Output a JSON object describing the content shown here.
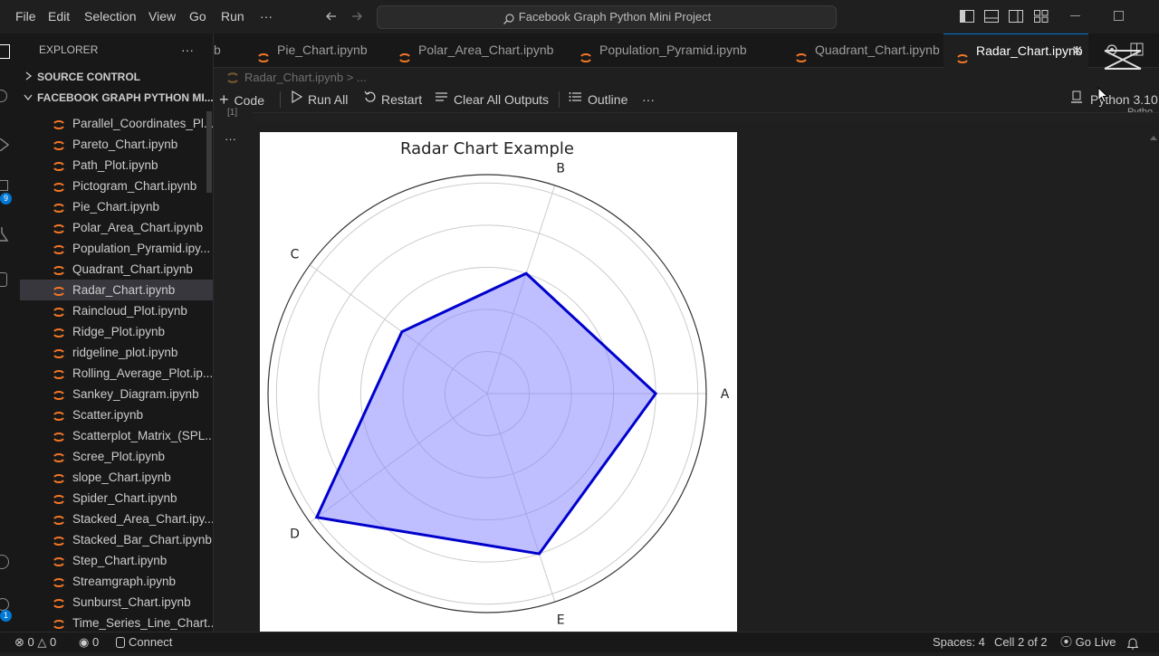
{
  "menu": [
    "File",
    "Edit",
    "Selection",
    "View",
    "Go",
    "Run",
    "···"
  ],
  "search_text": "Facebook Graph Python Mini Project",
  "sidebar": {
    "title": "EXPLORER",
    "more": "···",
    "source_control": "SOURCE CONTROL",
    "folder": "FACEBOOK GRAPH PYTHON MI...",
    "files": [
      "Parallel_Coordinates_Pl...",
      "Pareto_Chart.ipynb",
      "Path_Plot.ipynb",
      "Pictogram_Chart.ipynb",
      "Pie_Chart.ipynb",
      "Polar_Area_Chart.ipynb",
      "Population_Pyramid.ipy...",
      "Quadrant_Chart.ipynb",
      "Radar_Chart.ipynb",
      "Raincloud_Plot.ipynb",
      "Ridge_Plot.ipynb",
      "ridgeline_plot.ipynb",
      "Rolling_Average_Plot.ip...",
      "Sankey_Diagram.ipynb",
      "Scatter.ipynb",
      "Scatterplot_Matrix_(SPL...",
      "Scree_Plot.ipynb",
      "slope_Chart.ipynb",
      "Spider_Chart.ipynb",
      "Stacked_Area_Chart.ipy...",
      "Stacked_Bar_Chart.ipynb",
      "Step_Chart.ipynb",
      "Streamgraph.ipynb",
      "Sunburst_Chart.ipynb",
      "Time_Series_Line_Chart..."
    ],
    "active_index": 8
  },
  "tabs": {
    "partial": "b",
    "items": [
      "Pie_Chart.ipynb",
      "Polar_Area_Chart.ipynb",
      "Population_Pyramid.ipynb",
      "Quadrant_Chart.ipynb",
      "Radar_Chart.ipynb"
    ],
    "active_index": 4
  },
  "breadcrumb": "Radar_Chart.ipynb > ...",
  "toolbar": {
    "code": "Code",
    "run_all": "Run All",
    "restart": "Restart",
    "clear": "Clear All Outputs",
    "outline": "Outline",
    "more": "···",
    "kernel": "Python 3.10.",
    "kernel_sub": "Pytho"
  },
  "cell": {
    "exec_count": "[1]",
    "output_more": "···"
  },
  "status": {
    "errors": "0",
    "warnings": "0",
    "ports": "0",
    "connect": "Connect",
    "spaces": "Spaces: 4",
    "cell": "Cell 2 of 2",
    "golive": "Go Live"
  },
  "badges": {
    "source_control": "9",
    "accounts": "1"
  },
  "chart_data": {
    "type": "radar",
    "title": "Radar Chart Example",
    "categories": [
      "A",
      "B",
      "C",
      "D",
      "E"
    ],
    "values": [
      4,
      3,
      2.5,
      5,
      4
    ],
    "rmax": 5.2,
    "gridlines": [
      1,
      2,
      3,
      4,
      5
    ],
    "fill_color": "#8080ff",
    "line_color": "#0000cc"
  }
}
